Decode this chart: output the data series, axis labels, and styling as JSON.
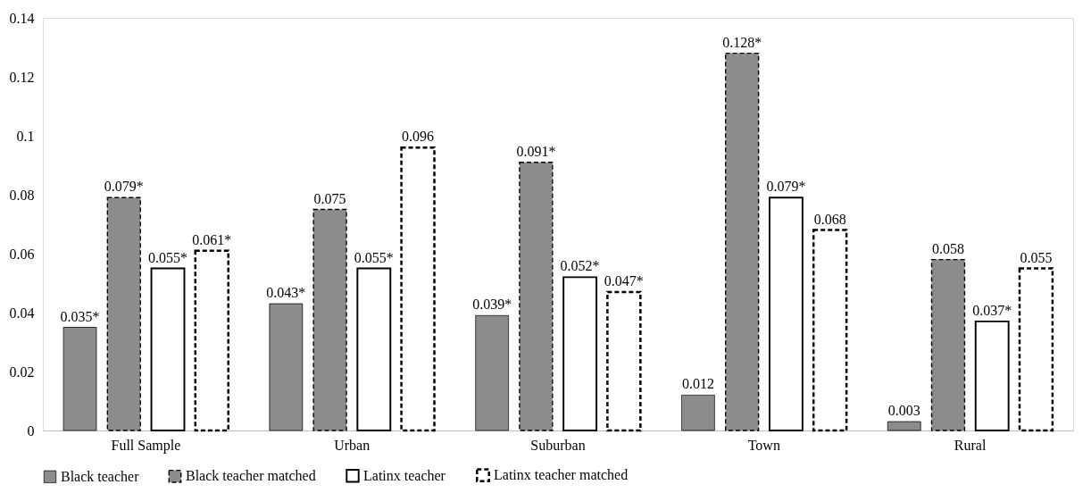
{
  "chart_data": {
    "type": "bar",
    "categories": [
      "Full Sample",
      "Urban",
      "Suburban",
      "Town",
      "Rural"
    ],
    "series": [
      {
        "name": "Black teacher",
        "color": "#8c8c8c",
        "line_style": "solid",
        "values": [
          0.035,
          0.043,
          0.039,
          0.012,
          0.003
        ],
        "value_labels": [
          "0.035*",
          "0.043*",
          "0.039*",
          "0.012",
          "0.003"
        ]
      },
      {
        "name": "Black teacher matched",
        "color": "#8c8c8c",
        "line_style": "dashed",
        "values": [
          0.079,
          0.075,
          0.091,
          0.128,
          0.058
        ],
        "value_labels": [
          "0.079*",
          "0.075",
          "0.091*",
          "0.128*",
          "0.058"
        ]
      },
      {
        "name": "Latinx teacher",
        "color": "#ffffff",
        "line_style": "solid",
        "values": [
          0.055,
          0.055,
          0.052,
          0.079,
          0.037
        ],
        "value_labels": [
          "0.055*",
          "0.055*",
          "0.052*",
          "0.079*",
          "0.037*"
        ]
      },
      {
        "name": "Latinx teacher matched",
        "color": "#ffffff",
        "line_style": "dashed",
        "values": [
          0.061,
          0.096,
          0.047,
          0.068,
          0.055
        ],
        "value_labels": [
          "0.061*",
          "0.096",
          "0.047*",
          "0.068",
          "0.055"
        ]
      }
    ],
    "ylim": [
      0,
      0.14
    ],
    "yticks": [
      0,
      0.02,
      0.04,
      0.06,
      0.08,
      0.1,
      0.12,
      0.14
    ],
    "grid": false,
    "legend": "bottom"
  }
}
